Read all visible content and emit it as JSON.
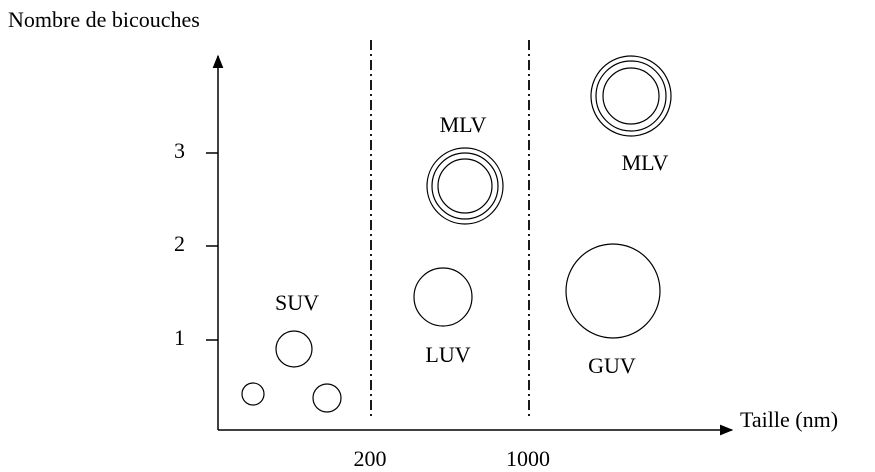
{
  "y_axis": {
    "label": "Nombre de bicouches",
    "ticks": [
      "3",
      "2",
      "1"
    ]
  },
  "x_axis": {
    "label": "Taille (nm)",
    "ticks": [
      "200",
      "1000"
    ]
  },
  "vesicles": [
    {
      "label": "SUV"
    },
    {
      "label": "MLV"
    },
    {
      "label": "LUV"
    },
    {
      "label": "MLV"
    },
    {
      "label": "GUV"
    }
  ]
}
